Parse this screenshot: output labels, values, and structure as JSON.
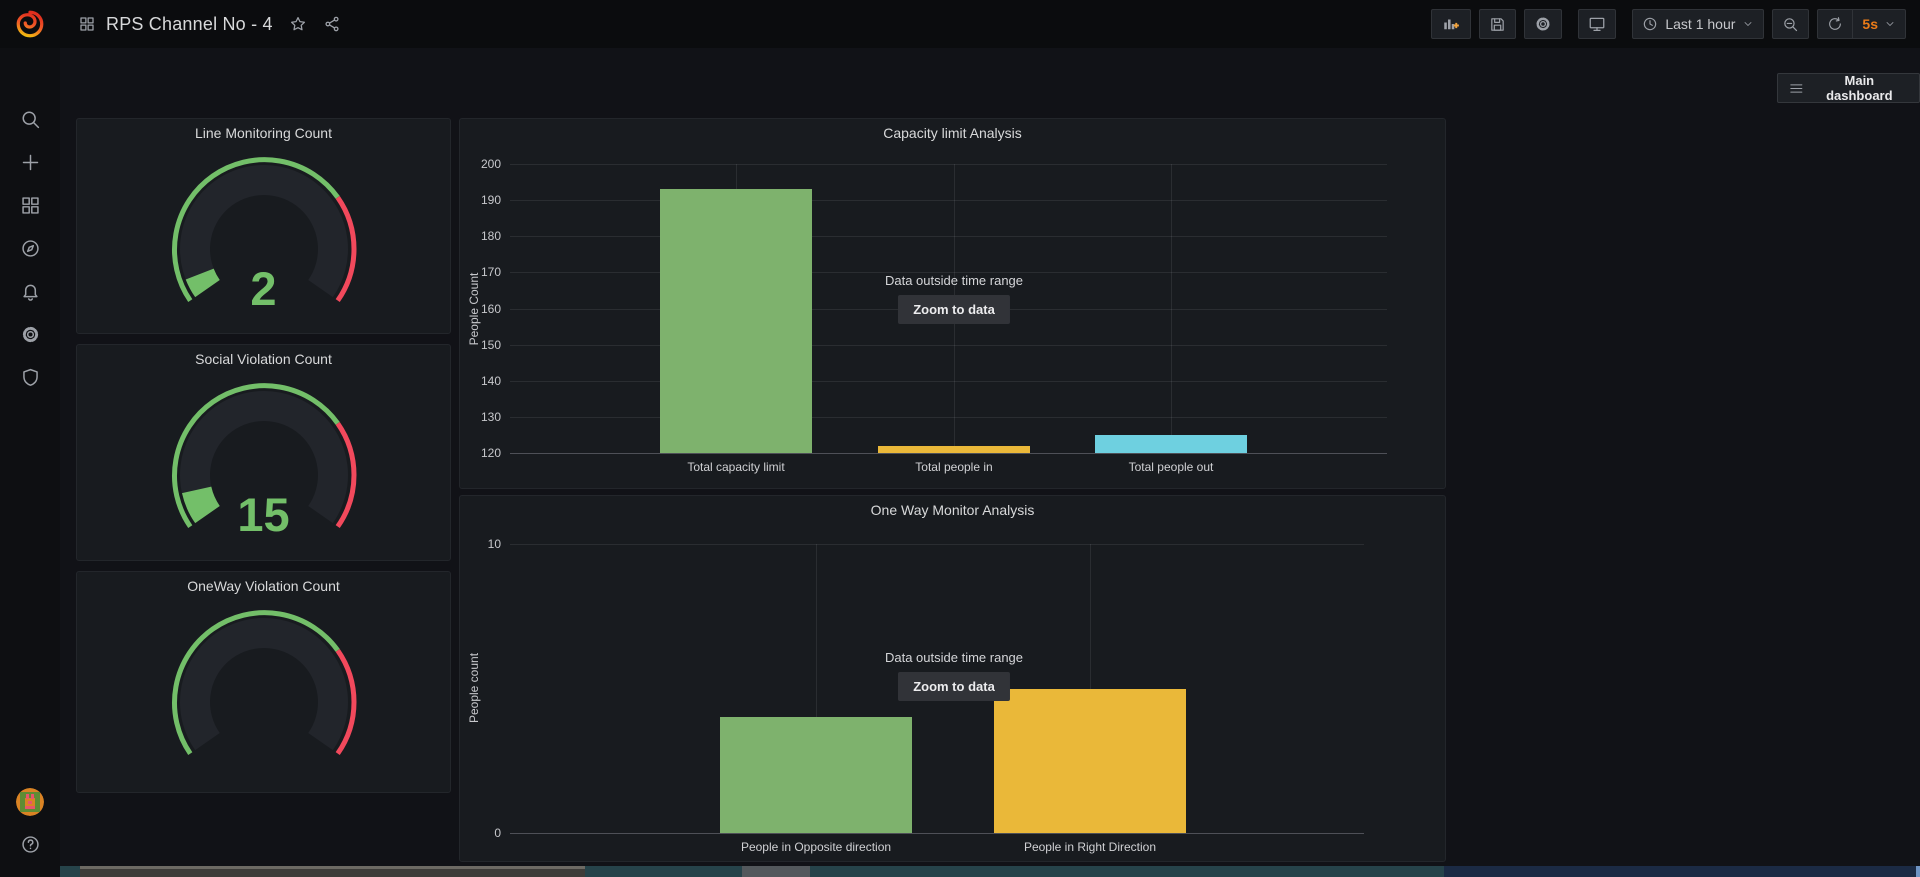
{
  "header": {
    "dashboard_title": "RPS Channel No - 4",
    "time_range_label": "Last 1 hour",
    "refresh_interval_label": "5s",
    "icons": [
      "apps-grid",
      "star",
      "share",
      "add-panel",
      "save-dashboard",
      "dashboard-settings",
      "cycle-view-mode",
      "time-range-clock",
      "caret-down",
      "zoom-out",
      "refresh"
    ]
  },
  "main_dashboard_button_label": "Main dashboard",
  "sidebar": {
    "icons": [
      "grafana-logo",
      "search",
      "create-plus",
      "dashboards-grid",
      "explore-compass",
      "alerting-bell",
      "configuration-gear",
      "server-admin-shield",
      "user-avatar",
      "help-question"
    ]
  },
  "colors": {
    "page_bg": "#111217",
    "panel_bg": "#181b1f",
    "green": "#7EB26D",
    "yellow": "#EAB839",
    "blue": "#6ED0E0",
    "gauge_green": "#73BF69",
    "gauge_red": "#F2495C",
    "accent_orange": "#eb7b18"
  },
  "chart_data": [
    {
      "type": "gauge",
      "title": "Line Monitoring Count",
      "value": 2,
      "value_color": "#73BF69",
      "threshold_colors": [
        "#73BF69",
        "#F2495C"
      ],
      "red_start_fraction": 0.72,
      "fill_fraction": 0.055
    },
    {
      "type": "gauge",
      "title": "Social Violation Count",
      "value": 15,
      "value_color": "#73BF69",
      "threshold_colors": [
        "#73BF69",
        "#F2495C"
      ],
      "red_start_fraction": 0.72,
      "fill_fraction": 0.09
    },
    {
      "type": "gauge",
      "title": "OneWay Violation Count",
      "value": null,
      "value_color": "#73BF69",
      "threshold_colors": [
        "#73BF69",
        "#F2495C"
      ],
      "red_start_fraction": 0.72,
      "fill_fraction": 0
    },
    {
      "type": "bar",
      "title": "Capacity limit Analysis",
      "ylabel": "People Count",
      "categories": [
        "Total capacity limit",
        "Total people in",
        "Total people out"
      ],
      "values": [
        193,
        122,
        125
      ],
      "colors": [
        "#7EB26D",
        "#EAB839",
        "#6ED0E0"
      ],
      "ylim": [
        120,
        200
      ],
      "yticks": [
        120,
        130,
        140,
        150,
        160,
        170,
        180,
        190,
        200
      ],
      "grid": true,
      "overlay_text": "Data outside time range",
      "zoom_button_label": "Zoom to data"
    },
    {
      "type": "bar",
      "title": "One Way Monitor Analysis",
      "ylabel": "People count",
      "categories": [
        "People in Opposite direction",
        "People in Right Direction"
      ],
      "values": [
        4,
        5
      ],
      "colors": [
        "#7EB26D",
        "#EAB839"
      ],
      "ylim": [
        0,
        10
      ],
      "yticks": [
        0,
        10
      ],
      "grid": true,
      "overlay_text": "Data outside time range",
      "zoom_button_label": "Zoom to data"
    }
  ]
}
